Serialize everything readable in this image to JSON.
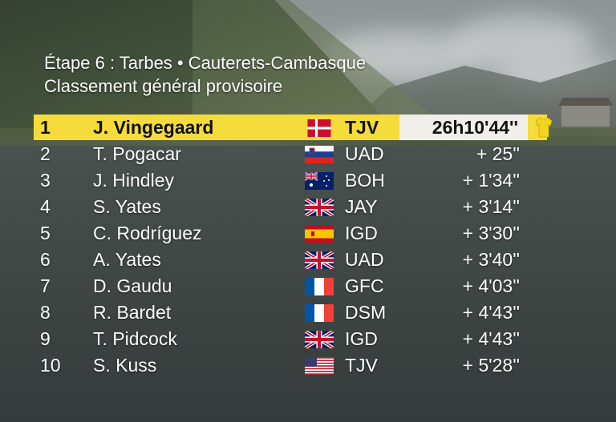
{
  "header": {
    "stage": "Étape 6 : Tarbes • Cauterets-Cambasque",
    "subtitle": "Classement général provisoire"
  },
  "standings": [
    {
      "pos": "1",
      "name": "J. Vingegaard",
      "flag": "denmark-flag-icon",
      "team": "TJV",
      "time": "26h10'44''"
    },
    {
      "pos": "2",
      "name": "T. Pogacar",
      "flag": "slovenia-flag-icon",
      "team": "UAD",
      "time": "+ 25''"
    },
    {
      "pos": "3",
      "name": "J. Hindley",
      "flag": "australia-flag-icon",
      "team": "BOH",
      "time": "+ 1'34''"
    },
    {
      "pos": "4",
      "name": "S. Yates",
      "flag": "uk-flag-icon",
      "team": "JAY",
      "time": "+ 3'14''"
    },
    {
      "pos": "5",
      "name": "C. Rodríguez",
      "flag": "spain-flag-icon",
      "team": "IGD",
      "time": "+ 3'30''"
    },
    {
      "pos": "6",
      "name": "A. Yates",
      "flag": "uk-flag-icon",
      "team": "UAD",
      "time": "+ 3'40''"
    },
    {
      "pos": "7",
      "name": "D. Gaudu",
      "flag": "france-flag-icon",
      "team": "GFC",
      "time": "+ 4'03''"
    },
    {
      "pos": "8",
      "name": "R. Bardet",
      "flag": "france-flag-icon",
      "team": "DSM",
      "time": "+ 4'43''"
    },
    {
      "pos": "9",
      "name": "T. Pidcock",
      "flag": "uk-flag-icon",
      "team": "IGD",
      "time": "+ 4'43''"
    },
    {
      "pos": "10",
      "name": "S. Kuss",
      "flag": "usa-flag-icon",
      "team": "TJV",
      "time": "+ 5'28''"
    }
  ],
  "leader_icon": "yellow-jersey-icon",
  "colors": {
    "leader_highlight": "#f5dc3a",
    "leader_time_box": "#f0efe9",
    "jersey": "#f2d51e"
  }
}
